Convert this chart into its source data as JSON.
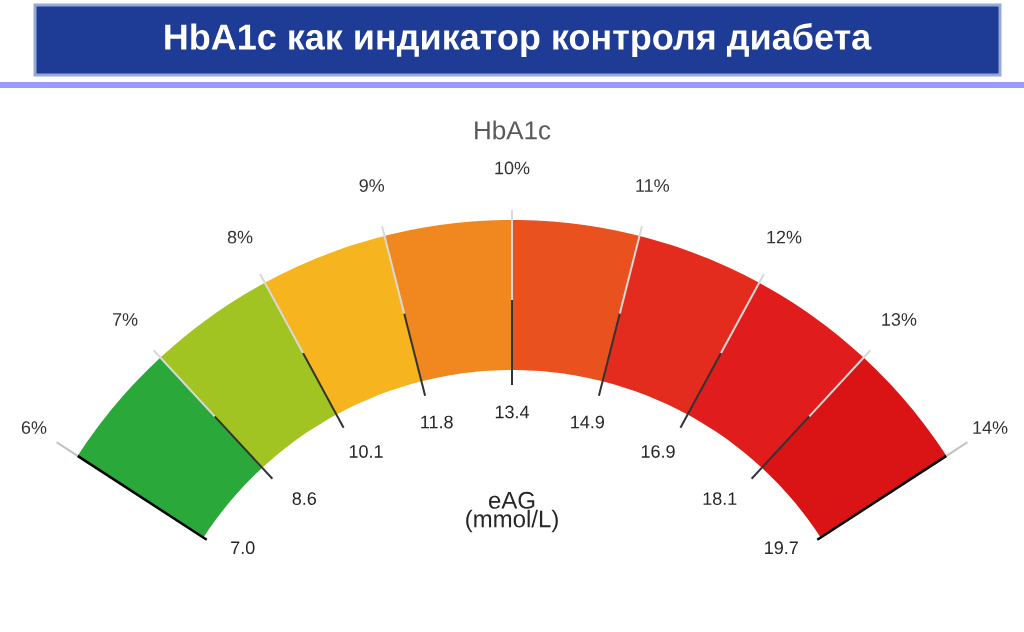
{
  "chart_data": {
    "type": "donut",
    "title": "HbA1c  как индикатор контроля диабета",
    "subtitle": "HbA1c",
    "categories": [
      null,
      null,
      null,
      null,
      null,
      null,
      null,
      null
    ],
    "values": [
      12.5,
      12.5,
      12.5,
      12.5,
      12.5,
      12.5,
      12.5,
      12.5
    ],
    "colors": [
      "#2aa83a",
      "#a2c422",
      "#f6b41f",
      "#f0871f",
      "#e9521e",
      "#e32c1e",
      "#e01c1c",
      "#da1414"
    ],
    "annotations": [
      "6%",
      "7%",
      "8%",
      "9%",
      "10%",
      "11%",
      "12%",
      "13%",
      "14%",
      "7.0",
      "8.6",
      "10.1",
      "11.8",
      "13.4",
      "14.9",
      "16.9",
      "18.1",
      "19.7",
      "eAG (mmol/L)"
    ]
  }
}
